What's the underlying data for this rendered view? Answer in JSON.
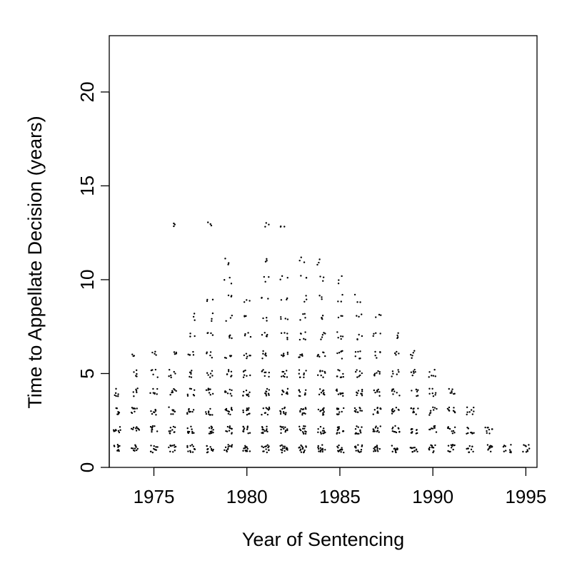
{
  "chart_data": {
    "type": "scatter",
    "title": "",
    "xlabel": "Year of Sentencing",
    "ylabel": "Time to Appellate Decision (years)",
    "xlim": [
      1972.6,
      1995.6
    ],
    "ylim": [
      0,
      23
    ],
    "x_ticks": [
      1975,
      1980,
      1985,
      1990,
      1995
    ],
    "y_ticks": [
      0,
      5,
      10,
      15,
      20
    ],
    "x_tick_labels": [
      "1975",
      "1980",
      "1985",
      "1990",
      "1995"
    ],
    "y_tick_labels": [
      "0",
      "5",
      "10",
      "15",
      "20"
    ],
    "grid": false,
    "legend": "none",
    "point_color": "#000000",
    "jittered": true,
    "clusters": [
      {
        "year": 1973,
        "time_years": [
          1,
          2,
          3,
          4
        ]
      },
      {
        "year": 1974,
        "time_years": [
          1,
          2,
          3,
          4,
          5,
          6
        ]
      },
      {
        "year": 1975,
        "time_years": [
          1,
          2,
          3,
          4,
          5,
          6
        ]
      },
      {
        "year": 1976,
        "time_years": [
          1,
          2,
          3,
          4,
          5,
          6,
          13
        ]
      },
      {
        "year": 1977,
        "time_years": [
          1,
          2,
          3,
          4,
          5,
          6,
          7,
          8
        ]
      },
      {
        "year": 1978,
        "time_years": [
          1,
          2,
          3,
          4,
          5,
          6,
          7,
          8,
          9,
          13
        ]
      },
      {
        "year": 1979,
        "time_years": [
          1,
          2,
          3,
          4,
          5,
          6,
          7,
          8,
          9,
          10,
          11
        ]
      },
      {
        "year": 1980,
        "time_years": [
          1,
          2,
          3,
          4,
          5,
          6,
          7,
          8,
          9
        ]
      },
      {
        "year": 1981,
        "time_years": [
          1,
          2,
          3,
          4,
          5,
          6,
          7,
          8,
          9,
          10,
          11,
          13
        ]
      },
      {
        "year": 1982,
        "time_years": [
          1,
          2,
          3,
          4,
          5,
          6,
          7,
          8,
          9,
          10,
          13
        ]
      },
      {
        "year": 1983,
        "time_years": [
          1,
          2,
          3,
          4,
          5,
          6,
          7,
          8,
          9,
          10,
          11
        ]
      },
      {
        "year": 1984,
        "time_years": [
          1,
          2,
          3,
          4,
          5,
          6,
          7,
          8,
          9,
          10,
          11
        ]
      },
      {
        "year": 1985,
        "time_years": [
          1,
          2,
          3,
          4,
          5,
          6,
          7,
          8,
          9,
          10
        ]
      },
      {
        "year": 1986,
        "time_years": [
          1,
          2,
          3,
          4,
          5,
          6,
          7,
          8,
          9
        ]
      },
      {
        "year": 1987,
        "time_years": [
          1,
          2,
          3,
          4,
          5,
          6,
          7,
          8
        ]
      },
      {
        "year": 1988,
        "time_years": [
          1,
          2,
          3,
          4,
          5,
          6,
          7
        ]
      },
      {
        "year": 1989,
        "time_years": [
          1,
          2,
          3,
          4,
          5,
          6
        ]
      },
      {
        "year": 1990,
        "time_years": [
          1,
          2,
          3,
          4,
          5
        ]
      },
      {
        "year": 1991,
        "time_years": [
          1,
          2,
          3,
          4
        ]
      },
      {
        "year": 1992,
        "time_years": [
          1,
          2,
          3
        ]
      },
      {
        "year": 1993,
        "time_years": [
          1,
          2
        ]
      },
      {
        "year": 1994,
        "time_years": [
          1
        ]
      },
      {
        "year": 1995,
        "time_years": [
          1
        ]
      }
    ]
  }
}
